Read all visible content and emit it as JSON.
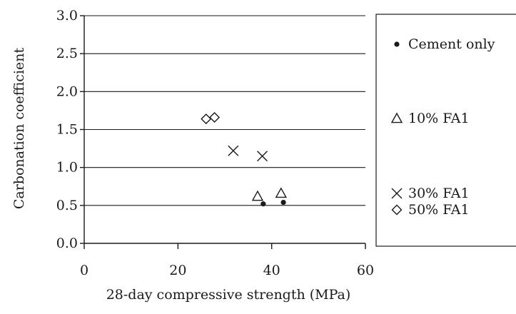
{
  "chart_data": {
    "type": "scatter",
    "title": "",
    "xlabel": "28-day compressive strength (MPa)",
    "ylabel": "Carbonation coefficient",
    "xlim": [
      0,
      60
    ],
    "ylim": [
      0,
      3.0
    ],
    "x_ticks": [
      "0",
      "20",
      "40",
      "60"
    ],
    "y_ticks": [
      "0.0",
      "0.5",
      "1.0",
      "1.5",
      "2.0",
      "2.5",
      "3.0"
    ],
    "grid": "horizontal",
    "legend_position": "right",
    "series": [
      {
        "name": "Cement only",
        "marker": "dot",
        "points": [
          [
            38.2,
            0.52
          ],
          [
            42.5,
            0.54
          ]
        ]
      },
      {
        "name": "10% FA1",
        "marker": "triangle",
        "points": [
          [
            37.0,
            0.62
          ],
          [
            42.0,
            0.66
          ]
        ]
      },
      {
        "name": "30% FA1",
        "marker": "cross",
        "points": [
          [
            31.8,
            1.22
          ],
          [
            38.0,
            1.15
          ]
        ]
      },
      {
        "name": "50% FA1",
        "marker": "diamond",
        "points": [
          [
            26.0,
            1.64
          ],
          [
            27.8,
            1.66
          ]
        ]
      }
    ]
  }
}
